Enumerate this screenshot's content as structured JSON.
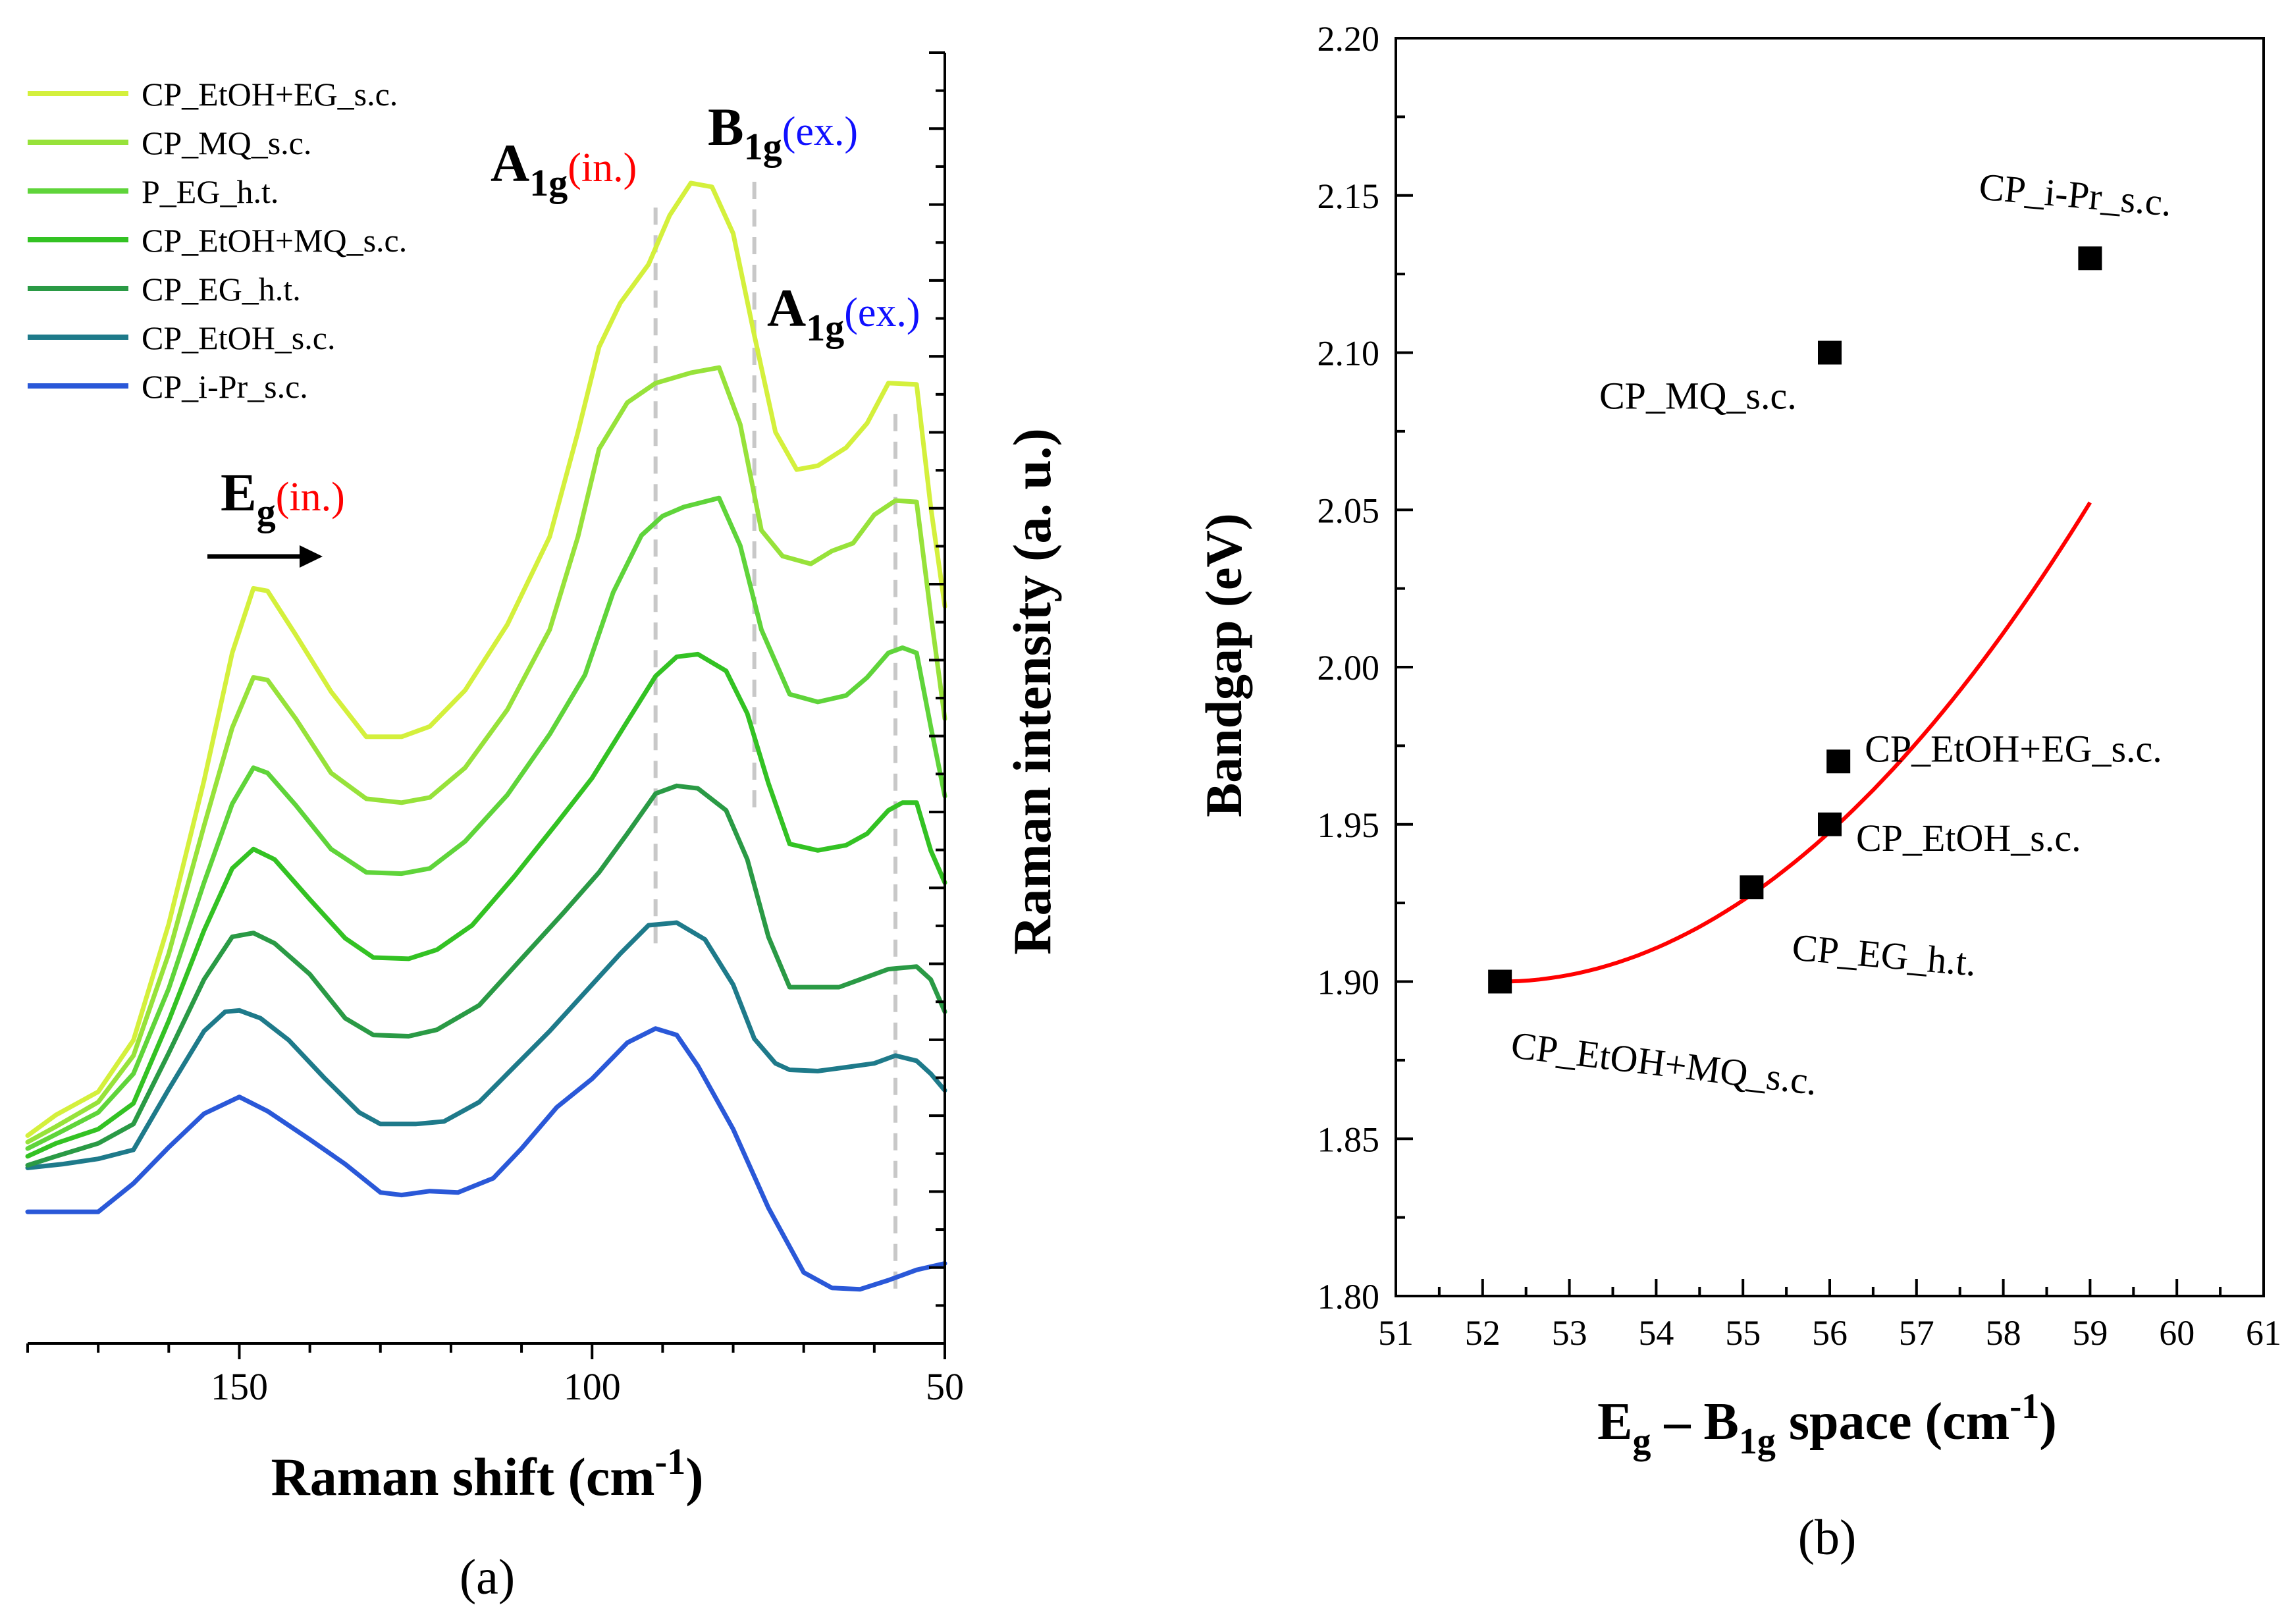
{
  "chart_data": [
    {
      "type": "line",
      "panel_label": "(a)",
      "xlabel": "Raman shift (cm",
      "xlabel_sup": "-1",
      "xlabel_close": ")",
      "ylabel": "Raman intensity (a. u.)",
      "xlim": [
        180,
        50
      ],
      "x_ticks": [
        "150",
        "100",
        "50"
      ],
      "x_tick_values": [
        150,
        100,
        50
      ],
      "y_units": "offset a.u. (0 = bottom frame, 100 = top frame)",
      "legend": [
        {
          "name": "CP_EtOH+EG_s.c.",
          "color": "#d4f03c"
        },
        {
          "name": "CP_MQ_s.c.",
          "color": "#97e23a"
        },
        {
          "name": "P_EG_h.t.",
          "color": "#5fd43a"
        },
        {
          "name": "CP_EtOH+MQ_s.c.",
          "color": "#33c223"
        },
        {
          "name": "CP_EG_h.t.",
          "color": "#2a9a45"
        },
        {
          "name": "CP_EtOH_s.c.",
          "color": "#1e7a8a"
        },
        {
          "name": "CP_i-Pr_s.c.",
          "color": "#2a58d8"
        }
      ],
      "annotations": [
        {
          "base": "E",
          "sub": "g",
          "mode": "(in.)",
          "color": "#ff0000"
        },
        {
          "base": "A",
          "sub": "1g",
          "mode": "(in.)",
          "color": "#ff0000"
        },
        {
          "base": "B",
          "sub": "1g",
          "mode": "(ex.)",
          "color": "#1010ff"
        },
        {
          "base": "A",
          "sub": "1g",
          "mode": "(ex.)",
          "color": "#1010ff"
        }
      ],
      "dashed_markers_x": [
        91,
        77,
        57
      ],
      "series": [
        {
          "name": "CP_i-Pr_s.c.",
          "color": "#2a58d8",
          "points": [
            [
              180,
              10.2
            ],
            [
              173,
              10.2
            ],
            [
              170,
              10.2
            ],
            [
              165,
              12.4
            ],
            [
              160,
              15.2
            ],
            [
              155,
              17.8
            ],
            [
              150,
              19.1
            ],
            [
              146,
              18.0
            ],
            [
              140,
              15.8
            ],
            [
              135,
              13.9
            ],
            [
              130,
              11.7
            ],
            [
              127,
              11.5
            ],
            [
              123,
              11.8
            ],
            [
              119,
              11.7
            ],
            [
              114,
              12.8
            ],
            [
              110,
              15.1
            ],
            [
              105,
              18.3
            ],
            [
              100,
              20.5
            ],
            [
              95,
              23.3
            ],
            [
              91,
              24.4
            ],
            [
              88,
              23.9
            ],
            [
              85,
              21.5
            ],
            [
              80,
              16.6
            ],
            [
              75,
              10.5
            ],
            [
              70,
              5.5
            ],
            [
              66,
              4.3
            ],
            [
              62,
              4.2
            ],
            [
              58,
              4.9
            ],
            [
              54,
              5.7
            ],
            [
              50,
              6.2
            ]
          ]
        },
        {
          "name": "CP_EtOH_s.c.",
          "color": "#1e7a8a",
          "points": [
            [
              180,
              13.6
            ],
            [
              175,
              13.9
            ],
            [
              170,
              14.3
            ],
            [
              165,
              15.0
            ],
            [
              160,
              19.7
            ],
            [
              155,
              24.2
            ],
            [
              152,
              25.7
            ],
            [
              150,
              25.8
            ],
            [
              147,
              25.2
            ],
            [
              143,
              23.5
            ],
            [
              138,
              20.6
            ],
            [
              133,
              17.9
            ],
            [
              130,
              17.0
            ],
            [
              125,
              17.0
            ],
            [
              121,
              17.2
            ],
            [
              116,
              18.7
            ],
            [
              112,
              20.9
            ],
            [
              106,
              24.2
            ],
            [
              100,
              27.8
            ],
            [
              96,
              30.2
            ],
            [
              92,
              32.4
            ],
            [
              88,
              32.6
            ],
            [
              84,
              31.3
            ],
            [
              80,
              27.8
            ],
            [
              77,
              23.6
            ],
            [
              74,
              21.7
            ],
            [
              72,
              21.2
            ],
            [
              68,
              21.1
            ],
            [
              64,
              21.4
            ],
            [
              60,
              21.7
            ],
            [
              57,
              22.3
            ],
            [
              54,
              21.9
            ],
            [
              52,
              20.9
            ],
            [
              50,
              19.6
            ]
          ]
        },
        {
          "name": "CP_EG_h.t.",
          "color": "#2a9a45",
          "points": [
            [
              180,
              13.8
            ],
            [
              176,
              14.5
            ],
            [
              170,
              15.5
            ],
            [
              165,
              17.0
            ],
            [
              160,
              22.5
            ],
            [
              155,
              28.2
            ],
            [
              151,
              31.5
            ],
            [
              148,
              31.8
            ],
            [
              145,
              31.0
            ],
            [
              140,
              28.6
            ],
            [
              135,
              25.2
            ],
            [
              131,
              23.9
            ],
            [
              126,
              23.8
            ],
            [
              122,
              24.3
            ],
            [
              116,
              26.2
            ],
            [
              110,
              29.8
            ],
            [
              104,
              33.4
            ],
            [
              99,
              36.5
            ],
            [
              95,
              39.5
            ],
            [
              91,
              42.6
            ],
            [
              88,
              43.2
            ],
            [
              85,
              43.0
            ],
            [
              81,
              41.3
            ],
            [
              78,
              37.5
            ],
            [
              75,
              31.5
            ],
            [
              72,
              27.6
            ],
            [
              69,
              27.6
            ],
            [
              65,
              27.6
            ],
            [
              62,
              28.2
            ],
            [
              58,
              29.0
            ],
            [
              54,
              29.2
            ],
            [
              52,
              28.2
            ],
            [
              50,
              25.7
            ]
          ]
        },
        {
          "name": "CP_EtOH+MQ_s.c.",
          "color": "#33c223",
          "points": [
            [
              180,
              14.5
            ],
            [
              176,
              15.5
            ],
            [
              170,
              16.6
            ],
            [
              165,
              18.6
            ],
            [
              160,
              25.0
            ],
            [
              155,
              32.0
            ],
            [
              151,
              36.8
            ],
            [
              148,
              38.3
            ],
            [
              145,
              37.5
            ],
            [
              140,
              34.4
            ],
            [
              135,
              31.4
            ],
            [
              131,
              29.9
            ],
            [
              126,
              29.8
            ],
            [
              122,
              30.5
            ],
            [
              117,
              32.4
            ],
            [
              111,
              36.2
            ],
            [
              105,
              40.3
            ],
            [
              100,
              43.8
            ],
            [
              95,
              48.2
            ],
            [
              91,
              51.7
            ],
            [
              88,
              53.2
            ],
            [
              85,
              53.4
            ],
            [
              81,
              52.1
            ],
            [
              78,
              48.8
            ],
            [
              75,
              43.4
            ],
            [
              72,
              38.7
            ],
            [
              68,
              38.2
            ],
            [
              64,
              38.6
            ],
            [
              61,
              39.5
            ],
            [
              58,
              41.3
            ],
            [
              56,
              41.9
            ],
            [
              54,
              41.9
            ],
            [
              52,
              38.2
            ],
            [
              50,
              35.7
            ]
          ]
        },
        {
          "name": "P_EG_h.t.",
          "color": "#5fd43a",
          "points": [
            [
              180,
              15.1
            ],
            [
              176,
              16.2
            ],
            [
              170,
              17.9
            ],
            [
              165,
              20.9
            ],
            [
              160,
              27.5
            ],
            [
              155,
              35.7
            ],
            [
              151,
              41.8
            ],
            [
              148,
              44.6
            ],
            [
              146,
              44.2
            ],
            [
              142,
              41.7
            ],
            [
              137,
              38.3
            ],
            [
              132,
              36.5
            ],
            [
              127,
              36.4
            ],
            [
              123,
              36.8
            ],
            [
              118,
              38.9
            ],
            [
              112,
              42.5
            ],
            [
              106,
              47.2
            ],
            [
              101,
              51.8
            ],
            [
              97,
              58.2
            ],
            [
              93,
              62.6
            ],
            [
              90,
              64.1
            ],
            [
              87,
              64.8
            ],
            [
              82,
              65.5
            ],
            [
              79,
              61.8
            ],
            [
              76,
              55.3
            ],
            [
              72,
              50.3
            ],
            [
              68,
              49.7
            ],
            [
              64,
              50.2
            ],
            [
              61,
              51.6
            ],
            [
              58,
              53.5
            ],
            [
              56,
              53.9
            ],
            [
              54,
              53.5
            ],
            [
              52,
              47.8
            ],
            [
              50,
              42.4
            ]
          ]
        },
        {
          "name": "CP_MQ_s.c.",
          "color": "#97e23a",
          "points": [
            [
              180,
              15.6
            ],
            [
              176,
              16.8
            ],
            [
              170,
              18.7
            ],
            [
              165,
              22.3
            ],
            [
              160,
              30.2
            ],
            [
              155,
              40.1
            ],
            [
              151,
              47.7
            ],
            [
              148,
              51.6
            ],
            [
              146,
              51.4
            ],
            [
              142,
              48.4
            ],
            [
              137,
              44.2
            ],
            [
              132,
              42.2
            ],
            [
              127,
              41.9
            ],
            [
              123,
              42.3
            ],
            [
              118,
              44.6
            ],
            [
              112,
              49.1
            ],
            [
              106,
              55.3
            ],
            [
              102,
              62.5
            ],
            [
              99,
              69.3
            ],
            [
              95,
              72.9
            ],
            [
              91,
              74.4
            ],
            [
              86,
              75.2
            ],
            [
              82,
              75.6
            ],
            [
              79,
              71.2
            ],
            [
              76,
              63.0
            ],
            [
              73,
              61.0
            ],
            [
              69,
              60.4
            ],
            [
              66,
              61.4
            ],
            [
              63,
              62.0
            ],
            [
              60,
              64.2
            ],
            [
              57,
              65.3
            ],
            [
              54,
              65.2
            ],
            [
              52,
              56.5
            ],
            [
              50,
              48.4
            ]
          ]
        },
        {
          "name": "CP_EtOH+EG_s.c.",
          "color": "#d4f03c",
          "points": [
            [
              180,
              16.1
            ],
            [
              176,
              17.7
            ],
            [
              170,
              19.5
            ],
            [
              165,
              23.5
            ],
            [
              160,
              32.5
            ],
            [
              155,
              43.6
            ],
            [
              151,
              53.5
            ],
            [
              148,
              58.5
            ],
            [
              146,
              58.3
            ],
            [
              142,
              54.9
            ],
            [
              137,
              50.5
            ],
            [
              132,
              47.0
            ],
            [
              127,
              47.0
            ],
            [
              123,
              47.8
            ],
            [
              118,
              50.6
            ],
            [
              112,
              55.7
            ],
            [
              106,
              62.5
            ],
            [
              102,
              70.6
            ],
            [
              99,
              77.2
            ],
            [
              96,
              80.6
            ],
            [
              92,
              83.6
            ],
            [
              89,
              87.4
            ],
            [
              86,
              89.9
            ],
            [
              83,
              89.6
            ],
            [
              80,
              86.0
            ],
            [
              77,
              78.1
            ],
            [
              74,
              70.6
            ],
            [
              71,
              67.7
            ],
            [
              68,
              68.0
            ],
            [
              64,
              69.4
            ],
            [
              61,
              71.3
            ],
            [
              58,
              74.4
            ],
            [
              54,
              74.3
            ],
            [
              52,
              64.8
            ],
            [
              50,
              57.1
            ]
          ]
        }
      ]
    },
    {
      "type": "scatter",
      "panel_label": "(b)",
      "xlabel_base": "E",
      "xlabel_sub1": "g",
      "xlabel_mid": " – B",
      "xlabel_sub2": "1g",
      "xlabel_rest": " space (cm",
      "xlabel_sup": "-1",
      "xlabel_close": ")",
      "ylabel": "Bandgap (eV)",
      "xlim": [
        51,
        61
      ],
      "ylim": [
        1.8,
        2.2
      ],
      "x_ticks": [
        "51",
        "52",
        "53",
        "54",
        "55",
        "56",
        "57",
        "58",
        "59",
        "60",
        "61"
      ],
      "x_tick_values": [
        51,
        52,
        53,
        54,
        55,
        56,
        57,
        58,
        59,
        60,
        61
      ],
      "y_ticks": [
        "1.80",
        "1.85",
        "1.90",
        "1.95",
        "2.00",
        "2.05",
        "2.10",
        "2.15",
        "2.20"
      ],
      "y_tick_values": [
        1.8,
        1.85,
        1.9,
        1.95,
        2.0,
        2.05,
        2.1,
        2.15,
        2.2
      ],
      "points": [
        {
          "label": "CP_i-Pr_s.c.",
          "x": 59.0,
          "y": 2.13
        },
        {
          "label": "CP_MQ_s.c.",
          "x": 56.0,
          "y": 2.1
        },
        {
          "label": "CP_EtOH+EG_s.c.",
          "x": 56.1,
          "y": 1.97
        },
        {
          "label": "CP_EtOH_s.c.",
          "x": 56.0,
          "y": 1.95
        },
        {
          "label": "CP_EG_h.t.",
          "x": 55.1,
          "y": 1.93
        },
        {
          "label": "CP_EtOH+MQ_s.c.",
          "x": 52.2,
          "y": 1.9
        }
      ],
      "fit": {
        "color": "#ff0000",
        "x_range": [
          52.2,
          59.0
        ],
        "a": 0.003295,
        "b": 1.9
      }
    }
  ]
}
